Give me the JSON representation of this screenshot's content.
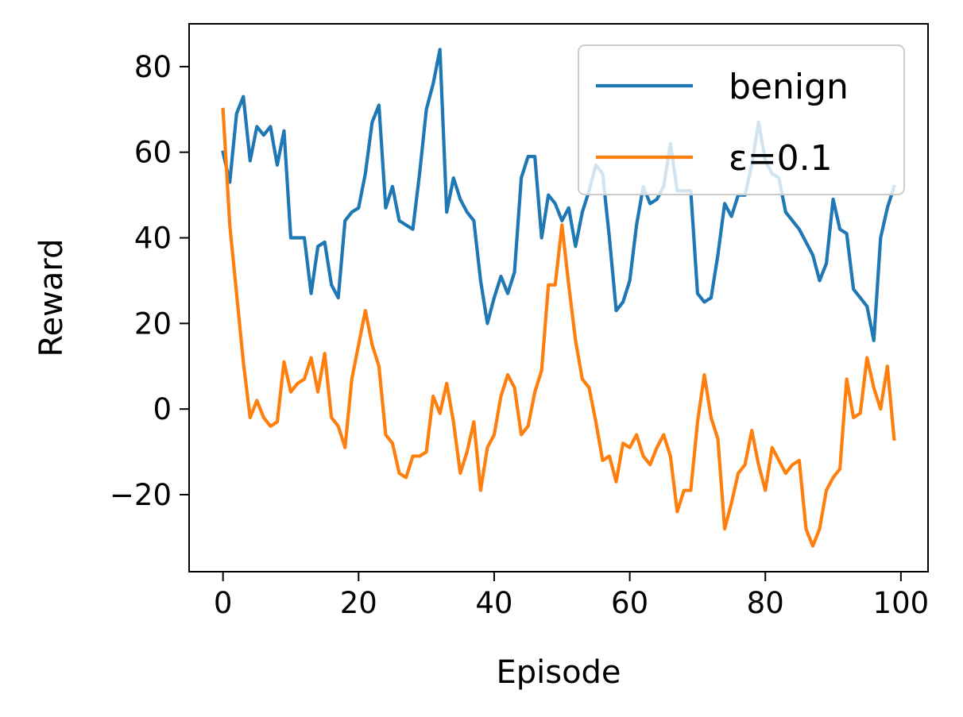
{
  "chart_data": {
    "type": "line",
    "title": "",
    "xlabel": "Episode",
    "ylabel": "Reward",
    "xlim": [
      -5,
      104
    ],
    "ylim": [
      -38,
      90
    ],
    "xticks": [
      0,
      20,
      40,
      60,
      80,
      100
    ],
    "yticks": [
      -20,
      0,
      20,
      40,
      60,
      80
    ],
    "xtick_labels": [
      "0",
      "20",
      "40",
      "60",
      "80",
      "100"
    ],
    "ytick_labels": [
      "−20",
      "0",
      "20",
      "40",
      "60",
      "80"
    ],
    "grid": false,
    "legend_position": "top-right",
    "series": [
      {
        "name": "benign",
        "color": "#1f77b4",
        "x": [
          0,
          1,
          2,
          3,
          4,
          5,
          6,
          7,
          8,
          9,
          10,
          11,
          12,
          13,
          14,
          15,
          16,
          17,
          18,
          19,
          20,
          21,
          22,
          23,
          24,
          25,
          26,
          27,
          28,
          29,
          30,
          31,
          32,
          33,
          34,
          35,
          36,
          37,
          38,
          39,
          40,
          41,
          42,
          43,
          44,
          45,
          46,
          47,
          48,
          49,
          50,
          51,
          52,
          53,
          54,
          55,
          56,
          57,
          58,
          59,
          60,
          61,
          62,
          63,
          64,
          65,
          66,
          67,
          68,
          69,
          70,
          71,
          72,
          73,
          74,
          75,
          76,
          77,
          78,
          79,
          80,
          81,
          82,
          83,
          84,
          85,
          86,
          87,
          88,
          89,
          90,
          91,
          92,
          93,
          94,
          95,
          96,
          97,
          98,
          99
        ],
        "values": [
          60,
          53,
          69,
          73,
          58,
          66,
          64,
          66,
          57,
          65,
          40,
          40,
          40,
          27,
          38,
          39,
          29,
          26,
          44,
          46,
          47,
          55,
          67,
          71,
          47,
          52,
          44,
          43,
          42,
          55,
          70,
          76,
          84,
          46,
          54,
          49,
          46,
          44,
          30,
          20,
          26,
          31,
          27,
          32,
          54,
          59,
          59,
          40,
          50,
          48,
          44,
          47,
          38,
          46,
          51,
          57,
          55,
          40,
          23,
          25,
          30,
          43,
          52,
          48,
          49,
          52,
          62,
          51,
          51,
          51,
          27,
          25,
          26,
          36,
          48,
          45,
          50,
          50,
          57,
          67,
          58,
          55,
          54,
          46,
          44,
          42,
          39,
          36,
          30,
          34,
          49,
          42,
          41,
          28,
          26,
          24,
          16,
          40,
          47,
          52
        ]
      },
      {
        "name": "ε=0.1",
        "color": "#ff7f0e",
        "x": [
          0,
          1,
          2,
          3,
          4,
          5,
          6,
          7,
          8,
          9,
          10,
          11,
          12,
          13,
          14,
          15,
          16,
          17,
          18,
          19,
          20,
          21,
          22,
          23,
          24,
          25,
          26,
          27,
          28,
          29,
          30,
          31,
          32,
          33,
          34,
          35,
          36,
          37,
          38,
          39,
          40,
          41,
          42,
          43,
          44,
          45,
          46,
          47,
          48,
          49,
          50,
          51,
          52,
          53,
          54,
          55,
          56,
          57,
          58,
          59,
          60,
          61,
          62,
          63,
          64,
          65,
          66,
          67,
          68,
          69,
          70,
          71,
          72,
          73,
          74,
          75,
          76,
          77,
          78,
          79,
          80,
          81,
          82,
          83,
          84,
          85,
          86,
          87,
          88,
          89,
          90,
          91,
          92,
          93,
          94,
          95,
          96,
          97,
          98,
          99
        ],
        "values": [
          70,
          43,
          27,
          11,
          -2,
          2,
          -2,
          -4,
          -3,
          11,
          4,
          6,
          7,
          12,
          4,
          13,
          -2,
          -4,
          -9,
          7,
          15,
          23,
          15,
          10,
          -6,
          -8,
          -15,
          -16,
          -11,
          -11,
          -10,
          3,
          -1,
          6,
          -3,
          -15,
          -10,
          -3,
          -19,
          -9,
          -6,
          3,
          8,
          5,
          -6,
          -4,
          4,
          9,
          29,
          29,
          43,
          29,
          16,
          7,
          5,
          -3,
          -12,
          -11,
          -17,
          -8,
          -9,
          -6,
          -11,
          -13,
          -9,
          -6,
          -11,
          -24,
          -19,
          -19,
          -3,
          8,
          -2,
          -7,
          -28,
          -22,
          -15,
          -13,
          -5,
          -13,
          -19,
          -9,
          -12,
          -15,
          -13,
          -12,
          -28,
          -32,
          -28,
          -19,
          -16,
          -14,
          7,
          -2,
          -1,
          12,
          5,
          0,
          10,
          -7
        ]
      }
    ]
  }
}
